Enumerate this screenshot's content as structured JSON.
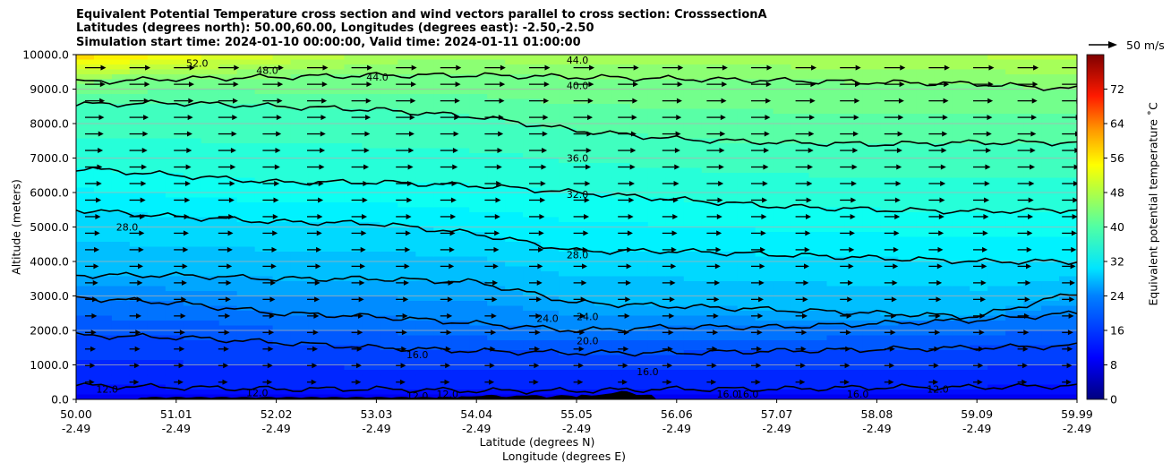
{
  "chart_data": {
    "type": "heatmap",
    "title_lines": [
      "Equivalent Potential Temperature cross section and wind vectors parallel to cross section: CrosssectionA",
      "Latitudes (degrees north): 50.00,60.00, Longitudes (degrees east): -2.50,-2.50",
      "Simulation start time: 2024-01-10 00:00:00, Valid time: 2024-01-11 01:00:00"
    ],
    "ylabel": "Altitude (meters)",
    "xlabel": "Latitude (degrees N)",
    "xlabel2": "Longitude (degrees E)",
    "ylim": [
      0,
      10000
    ],
    "y_ticks": [
      "0.0",
      "1000.0",
      "2000.0",
      "3000.0",
      "4000.0",
      "5000.0",
      "6000.0",
      "7000.0",
      "8000.0",
      "9000.0",
      "10000.0"
    ],
    "x_ticks_lat": [
      "50.00",
      "51.01",
      "52.02",
      "53.03",
      "54.04",
      "55.05",
      "56.06",
      "57.07",
      "58.08",
      "59.09",
      "59.99"
    ],
    "x_ticks_lon": [
      "-2.49",
      "-2.49",
      "-2.49",
      "-2.49",
      "-2.49",
      "-2.49",
      "-2.49",
      "-2.49",
      "-2.49",
      "-2.49",
      "-2.49"
    ],
    "colorbar": {
      "label": "Equivalent potential temperature $^\\circ$C",
      "label_text": "Equivalent potential temperature ˚C",
      "ticks": [
        "0",
        "8",
        "16",
        "24",
        "32",
        "40",
        "48",
        "56",
        "64",
        "72"
      ],
      "range": [
        0,
        80
      ]
    },
    "reference_vector_label": "50 m/s",
    "contour_levels": [
      12,
      16,
      20,
      24,
      28,
      32,
      36,
      40,
      44,
      48,
      52
    ],
    "contour_labels": [
      "52.0",
      "48.0",
      "44.0",
      "44.0",
      "40.0",
      "36.0",
      "32.0",
      "28.0",
      "28.0",
      "24.0",
      "24.0",
      "20.0",
      "16.0",
      "16.0",
      "16.0",
      "16.0",
      "16.0",
      "12.0",
      "12.0",
      "12.0",
      "12.0",
      "12.0"
    ],
    "contours": [
      {
        "level": 40,
        "alt": [
          9200,
          9300,
          9350,
          9400,
          9400,
          9350,
          9300,
          9250,
          9200,
          9150,
          9000
        ]
      },
      {
        "level": 36,
        "alt": [
          8550,
          8600,
          8500,
          8400,
          8200,
          7800,
          7550,
          7450,
          7400,
          7450,
          7450
        ]
      },
      {
        "level": 32,
        "alt": [
          6700,
          6500,
          6300,
          6300,
          6200,
          6000,
          5800,
          5600,
          5500,
          5450,
          5500
        ]
      },
      {
        "level": 28,
        "alt": [
          5500,
          5300,
          5150,
          5100,
          4800,
          4300,
          4300,
          4200,
          4100,
          4000,
          4000
        ]
      },
      {
        "level": 24,
        "alt": [
          3600,
          3600,
          3500,
          3500,
          3400,
          2800,
          2700,
          2600,
          2500,
          2400,
          3100
        ]
      },
      {
        "level": 20,
        "alt": [
          2950,
          2800,
          2500,
          2400,
          2200,
          2000,
          2100,
          2100,
          2200,
          2300,
          2500
        ]
      },
      {
        "level": 16,
        "alt": [
          1850,
          1800,
          1650,
          1500,
          1400,
          1350,
          1350,
          1400,
          1450,
          1500,
          1550
        ]
      },
      {
        "level": 12,
        "alt": [
          400,
          350,
          300,
          300,
          250,
          250,
          300,
          300,
          350,
          350,
          400
        ]
      }
    ]
  }
}
